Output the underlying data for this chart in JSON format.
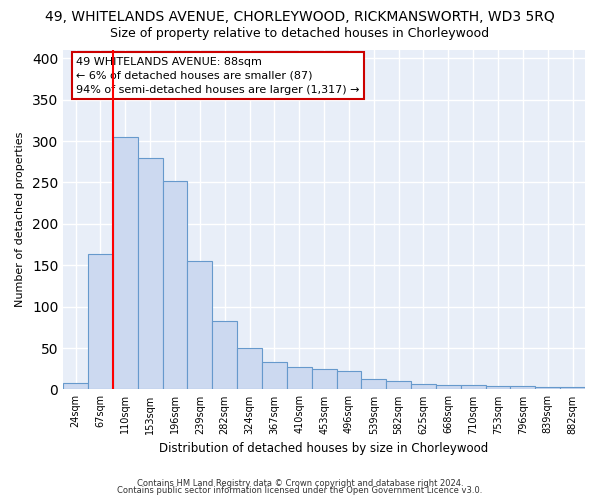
{
  "title1": "49, WHITELANDS AVENUE, CHORLEYWOOD, RICKMANSWORTH, WD3 5RQ",
  "title2": "Size of property relative to detached houses in Chorleywood",
  "xlabel": "Distribution of detached houses by size in Chorleywood",
  "ylabel": "Number of detached properties",
  "categories": [
    "24sqm",
    "67sqm",
    "110sqm",
    "153sqm",
    "196sqm",
    "239sqm",
    "282sqm",
    "324sqm",
    "367sqm",
    "410sqm",
    "453sqm",
    "496sqm",
    "539sqm",
    "582sqm",
    "625sqm",
    "668sqm",
    "710sqm",
    "753sqm",
    "796sqm",
    "839sqm",
    "882sqm"
  ],
  "values": [
    8,
    163,
    305,
    280,
    252,
    155,
    83,
    50,
    33,
    27,
    25,
    22,
    13,
    10,
    7,
    5,
    5,
    4,
    4,
    3,
    3
  ],
  "bar_color": "#ccd9f0",
  "bar_edge_color": "#6699cc",
  "red_line_x": 1.5,
  "annotation_lines": [
    "49 WHITELANDS AVENUE: 88sqm",
    "← 6% of detached houses are smaller (87)",
    "94% of semi-detached houses are larger (1,317) →"
  ],
  "annotation_box_color": "#ffffff",
  "annotation_box_edge": "#cc0000",
  "ylim": [
    0,
    410
  ],
  "yticks": [
    0,
    50,
    100,
    150,
    200,
    250,
    300,
    350,
    400
  ],
  "footer1": "Contains HM Land Registry data © Crown copyright and database right 2024.",
  "footer2": "Contains public sector information licensed under the Open Government Licence v3.0.",
  "plot_bg_color": "#e8eef8",
  "fig_bg_color": "#ffffff",
  "grid_color": "#ffffff",
  "title1_fontsize": 10,
  "title2_fontsize": 9
}
